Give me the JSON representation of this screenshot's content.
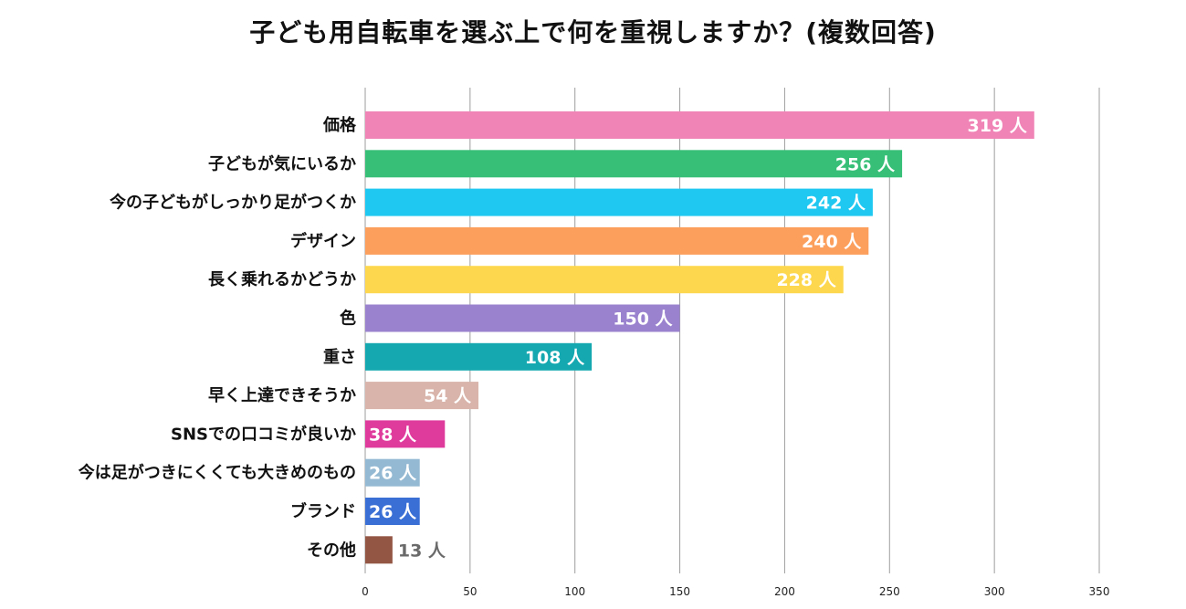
{
  "chart_data": {
    "type": "bar",
    "orientation": "horizontal",
    "title": "子ども用自転車を選ぶ上で何を重視しますか？(複数回答)",
    "xlabel": "",
    "ylabel": "",
    "xlim": [
      0,
      350
    ],
    "ticks": [
      0,
      50,
      100,
      150,
      200,
      250,
      300,
      350
    ],
    "unit": "人",
    "grid": true,
    "categories": [
      "価格",
      "子どもが気にいるか",
      "今の子どもがしっかり足がつくか",
      "デザイン",
      "長く乗れるかどうか",
      "色",
      "重さ",
      "早く上達できそうか",
      "SNSでの口コミが良いか",
      "今は足がつきにくくても大きめのもの",
      "ブランド",
      "その他"
    ],
    "values": [
      319,
      256,
      242,
      240,
      228,
      150,
      108,
      54,
      38,
      26,
      26,
      13
    ],
    "colors": [
      "#f184b6",
      "#38bf77",
      "#1ec8f1",
      "#fc9f5c",
      "#fdd84e",
      "#9a82cf",
      "#15a8b1",
      "#d8b4aa",
      "#df3b9d",
      "#94b9d3",
      "#3a6fd6",
      "#935544"
    ],
    "value_text_inside_color": "#ffffff",
    "value_text_outside_color": "#6a6a6a",
    "grid_color": "#9e9e9e"
  }
}
